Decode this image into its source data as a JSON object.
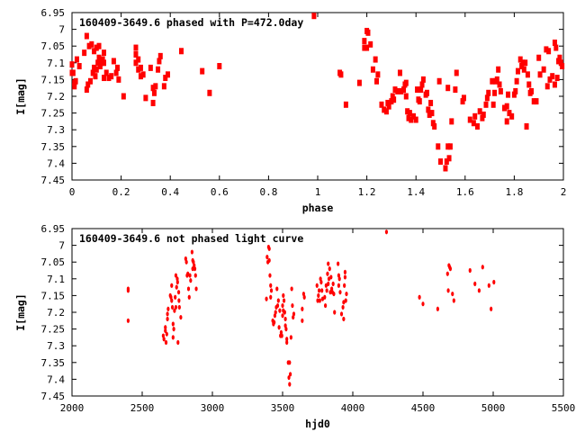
{
  "colors": {
    "points": "#ff0000",
    "axis": "#000000"
  },
  "chart_data": [
    {
      "type": "scatter",
      "title": "160409-3649.6 phased with P=472.0day",
      "xlabel": "phase",
      "ylabel": "I[mag]",
      "xlim": [
        0,
        2
      ],
      "ylim": [
        6.95,
        7.45
      ],
      "y_inverted": true,
      "grid": false,
      "xticks": [
        "0",
        "0.2",
        "0.4",
        "0.6",
        "0.8",
        "1",
        "1.2",
        "1.4",
        "1.6",
        "1.8",
        "2"
      ],
      "yticks": [
        "6.95",
        "7",
        "7.05",
        "7.1",
        "7.15",
        "7.2",
        "7.25",
        "7.3",
        "7.35",
        "7.4",
        "7.45"
      ],
      "points": [
        [
          0.0,
          7.105
        ],
        [
          0.0,
          7.13
        ],
        [
          0.005,
          7.13
        ],
        [
          0.01,
          7.16
        ],
        [
          0.01,
          7.17
        ],
        [
          0.015,
          7.155
        ],
        [
          0.02,
          7.09
        ],
        [
          0.03,
          7.11
        ],
        [
          0.05,
          7.07
        ],
        [
          0.06,
          7.02
        ],
        [
          0.06,
          7.18
        ],
        [
          0.065,
          7.165
        ],
        [
          0.07,
          7.05
        ],
        [
          0.075,
          7.155
        ],
        [
          0.08,
          7.045
        ],
        [
          0.085,
          7.13
        ],
        [
          0.09,
          7.115
        ],
        [
          0.09,
          7.065
        ],
        [
          0.095,
          7.14
        ],
        [
          0.1,
          7.055
        ],
        [
          0.1,
          7.12
        ],
        [
          0.105,
          7.1
        ],
        [
          0.11,
          7.05
        ],
        [
          0.11,
          7.085
        ],
        [
          0.115,
          7.11
        ],
        [
          0.12,
          7.1
        ],
        [
          0.125,
          7.09
        ],
        [
          0.13,
          7.1
        ],
        [
          0.13,
          7.07
        ],
        [
          0.13,
          7.145
        ],
        [
          0.14,
          7.13
        ],
        [
          0.15,
          7.145
        ],
        [
          0.16,
          7.14
        ],
        [
          0.17,
          7.095
        ],
        [
          0.18,
          7.13
        ],
        [
          0.185,
          7.115
        ],
        [
          0.19,
          7.15
        ],
        [
          0.21,
          7.2
        ],
        [
          0.26,
          7.055
        ],
        [
          0.26,
          7.075
        ],
        [
          0.26,
          7.1
        ],
        [
          0.27,
          7.12
        ],
        [
          0.27,
          7.09
        ],
        [
          0.28,
          7.14
        ],
        [
          0.28,
          7.115
        ],
        [
          0.29,
          7.135
        ],
        [
          0.3,
          7.205
        ],
        [
          0.32,
          7.115
        ],
        [
          0.33,
          7.22
        ],
        [
          0.33,
          7.175
        ],
        [
          0.335,
          7.19
        ],
        [
          0.34,
          7.17
        ],
        [
          0.35,
          7.12
        ],
        [
          0.355,
          7.095
        ],
        [
          0.36,
          7.08
        ],
        [
          0.375,
          7.17
        ],
        [
          0.38,
          7.145
        ],
        [
          0.39,
          7.135
        ],
        [
          0.445,
          7.065
        ],
        [
          0.53,
          7.125
        ],
        [
          0.56,
          7.19
        ],
        [
          0.6,
          7.11
        ],
        [
          0.985,
          6.96
        ],
        [
          1.09,
          7.13
        ],
        [
          1.095,
          7.135
        ],
        [
          1.115,
          7.225
        ],
        [
          1.17,
          7.16
        ],
        [
          1.19,
          7.055
        ],
        [
          1.19,
          7.035
        ],
        [
          1.2,
          7.055
        ],
        [
          1.2,
          7.005
        ],
        [
          1.205,
          7.01
        ],
        [
          1.215,
          7.045
        ],
        [
          1.225,
          7.12
        ],
        [
          1.235,
          7.09
        ],
        [
          1.24,
          7.155
        ],
        [
          1.245,
          7.135
        ],
        [
          1.26,
          7.225
        ],
        [
          1.27,
          7.24
        ],
        [
          1.28,
          7.245
        ],
        [
          1.285,
          7.22
        ],
        [
          1.29,
          7.23
        ],
        [
          1.3,
          7.215
        ],
        [
          1.305,
          7.2
        ],
        [
          1.31,
          7.21
        ],
        [
          1.315,
          7.18
        ],
        [
          1.325,
          7.185
        ],
        [
          1.335,
          7.13
        ],
        [
          1.34,
          7.185
        ],
        [
          1.35,
          7.18
        ],
        [
          1.355,
          7.165
        ],
        [
          1.36,
          7.16
        ],
        [
          1.36,
          7.2
        ],
        [
          1.365,
          7.245
        ],
        [
          1.37,
          7.265
        ],
        [
          1.375,
          7.25
        ],
        [
          1.38,
          7.27
        ],
        [
          1.39,
          7.26
        ],
        [
          1.4,
          7.27
        ],
        [
          1.405,
          7.18
        ],
        [
          1.41,
          7.21
        ],
        [
          1.415,
          7.215
        ],
        [
          1.42,
          7.18
        ],
        [
          1.425,
          7.165
        ],
        [
          1.43,
          7.15
        ],
        [
          1.44,
          7.195
        ],
        [
          1.445,
          7.19
        ],
        [
          1.45,
          7.24
        ],
        [
          1.455,
          7.255
        ],
        [
          1.46,
          7.22
        ],
        [
          1.465,
          7.25
        ],
        [
          1.47,
          7.28
        ],
        [
          1.475,
          7.29
        ],
        [
          1.49,
          7.35
        ],
        [
          1.495,
          7.155
        ],
        [
          1.5,
          7.395
        ],
        [
          1.52,
          7.415
        ],
        [
          1.525,
          7.395
        ],
        [
          1.53,
          7.35
        ],
        [
          1.53,
          7.175
        ],
        [
          1.535,
          7.385
        ],
        [
          1.54,
          7.35
        ],
        [
          1.545,
          7.275
        ],
        [
          1.56,
          7.18
        ],
        [
          1.565,
          7.13
        ],
        [
          1.59,
          7.215
        ],
        [
          1.595,
          7.205
        ],
        [
          1.62,
          7.27
        ],
        [
          1.635,
          7.28
        ],
        [
          1.64,
          7.26
        ],
        [
          1.65,
          7.29
        ],
        [
          1.66,
          7.245
        ],
        [
          1.67,
          7.265
        ],
        [
          1.675,
          7.255
        ],
        [
          1.685,
          7.225
        ],
        [
          1.69,
          7.205
        ],
        [
          1.695,
          7.19
        ],
        [
          1.71,
          7.155
        ],
        [
          1.715,
          7.225
        ],
        [
          1.72,
          7.19
        ],
        [
          1.725,
          7.155
        ],
        [
          1.73,
          7.15
        ],
        [
          1.735,
          7.12
        ],
        [
          1.74,
          7.165
        ],
        [
          1.745,
          7.185
        ],
        [
          1.76,
          7.235
        ],
        [
          1.77,
          7.23
        ],
        [
          1.77,
          7.275
        ],
        [
          1.775,
          7.195
        ],
        [
          1.78,
          7.25
        ],
        [
          1.79,
          7.26
        ],
        [
          1.8,
          7.195
        ],
        [
          1.805,
          7.185
        ],
        [
          1.81,
          7.155
        ],
        [
          1.815,
          7.125
        ],
        [
          1.825,
          7.09
        ],
        [
          1.83,
          7.11
        ],
        [
          1.835,
          7.1
        ],
        [
          1.84,
          7.12
        ],
        [
          1.845,
          7.1
        ],
        [
          1.85,
          7.29
        ],
        [
          1.855,
          7.135
        ],
        [
          1.86,
          7.165
        ],
        [
          1.865,
          7.19
        ],
        [
          1.87,
          7.185
        ],
        [
          1.88,
          7.215
        ],
        [
          1.89,
          7.215
        ],
        [
          1.9,
          7.085
        ],
        [
          1.905,
          7.135
        ],
        [
          1.92,
          7.12
        ],
        [
          1.93,
          7.06
        ],
        [
          1.935,
          7.17
        ],
        [
          1.94,
          7.065
        ],
        [
          1.945,
          7.15
        ],
        [
          1.955,
          7.14
        ],
        [
          1.965,
          7.04
        ],
        [
          1.965,
          7.165
        ],
        [
          1.97,
          7.055
        ],
        [
          1.975,
          7.145
        ],
        [
          1.98,
          7.095
        ],
        [
          1.985,
          7.085
        ],
        [
          1.99,
          7.1
        ],
        [
          1.995,
          7.11
        ]
      ]
    },
    {
      "type": "scatter",
      "title": "160409-3649.6 not phased light curve",
      "xlabel": "hjd0",
      "ylabel": "I[mag]",
      "xlim": [
        2000,
        5500
      ],
      "ylim": [
        6.95,
        7.45
      ],
      "y_inverted": true,
      "grid": false,
      "xticks": [
        "2000",
        "2500",
        "3000",
        "3500",
        "4000",
        "4500",
        "5000",
        "5500"
      ],
      "yticks": [
        "6.95",
        "7",
        "7.05",
        "7.1",
        "7.15",
        "7.2",
        "7.25",
        "7.3",
        "7.35",
        "7.4",
        "7.45"
      ],
      "points": [
        [
          2400,
          7.13
        ],
        [
          2400,
          7.135
        ],
        [
          2400,
          7.225
        ],
        [
          2650,
          7.27
        ],
        [
          2655,
          7.28
        ],
        [
          2665,
          7.245
        ],
        [
          2665,
          7.255
        ],
        [
          2670,
          7.29
        ],
        [
          2675,
          7.265
        ],
        [
          2680,
          7.22
        ],
        [
          2680,
          7.205
        ],
        [
          2685,
          7.19
        ],
        [
          2700,
          7.15
        ],
        [
          2705,
          7.155
        ],
        [
          2710,
          7.165
        ],
        [
          2710,
          7.12
        ],
        [
          2715,
          7.185
        ],
        [
          2720,
          7.235
        ],
        [
          2720,
          7.275
        ],
        [
          2725,
          7.25
        ],
        [
          2730,
          7.195
        ],
        [
          2735,
          7.155
        ],
        [
          2740,
          7.185
        ],
        [
          2740,
          7.09
        ],
        [
          2745,
          7.125
        ],
        [
          2750,
          7.1
        ],
        [
          2752,
          7.11
        ],
        [
          2755,
          7.29
        ],
        [
          2760,
          7.14
        ],
        [
          2762,
          7.165
        ],
        [
          2765,
          7.185
        ],
        [
          2775,
          7.215
        ],
        [
          2810,
          7.04
        ],
        [
          2815,
          7.05
        ],
        [
          2820,
          7.09
        ],
        [
          2825,
          7.085
        ],
        [
          2830,
          7.13
        ],
        [
          2835,
          7.155
        ],
        [
          2840,
          7.09
        ],
        [
          2845,
          7.105
        ],
        [
          2855,
          7.02
        ],
        [
          2860,
          7.045
        ],
        [
          2860,
          7.07
        ],
        [
          2865,
          7.05
        ],
        [
          2870,
          7.06
        ],
        [
          2875,
          7.07
        ],
        [
          2880,
          7.09
        ],
        [
          2885,
          7.13
        ],
        [
          3385,
          7.16
        ],
        [
          3390,
          7.035
        ],
        [
          3395,
          7.05
        ],
        [
          3400,
          7.005
        ],
        [
          3405,
          7.01
        ],
        [
          3405,
          7.045
        ],
        [
          3410,
          7.09
        ],
        [
          3415,
          7.12
        ],
        [
          3415,
          7.155
        ],
        [
          3420,
          7.135
        ],
        [
          3430,
          7.225
        ],
        [
          3435,
          7.235
        ],
        [
          3440,
          7.23
        ],
        [
          3445,
          7.21
        ],
        [
          3450,
          7.2
        ],
        [
          3455,
          7.185
        ],
        [
          3460,
          7.13
        ],
        [
          3465,
          7.18
        ],
        [
          3470,
          7.165
        ],
        [
          3475,
          7.245
        ],
        [
          3480,
          7.195
        ],
        [
          3485,
          7.27
        ],
        [
          3490,
          7.26
        ],
        [
          3495,
          7.27
        ],
        [
          3500,
          7.18
        ],
        [
          3500,
          7.21
        ],
        [
          3505,
          7.15
        ],
        [
          3505,
          7.195
        ],
        [
          3510,
          7.165
        ],
        [
          3515,
          7.2
        ],
        [
          3520,
          7.24
        ],
        [
          3520,
          7.22
        ],
        [
          3525,
          7.25
        ],
        [
          3530,
          7.28
        ],
        [
          3530,
          7.29
        ],
        [
          3540,
          7.35
        ],
        [
          3545,
          7.395
        ],
        [
          3550,
          7.35
        ],
        [
          3550,
          7.415
        ],
        [
          3555,
          7.385
        ],
        [
          3560,
          7.275
        ],
        [
          3565,
          7.13
        ],
        [
          3570,
          7.18
        ],
        [
          3575,
          7.215
        ],
        [
          3580,
          7.205
        ],
        [
          3640,
          7.19
        ],
        [
          3640,
          7.225
        ],
        [
          3650,
          7.145
        ],
        [
          3655,
          7.155
        ],
        [
          3745,
          7.12
        ],
        [
          3750,
          7.165
        ],
        [
          3755,
          7.15
        ],
        [
          3760,
          7.135
        ],
        [
          3765,
          7.165
        ],
        [
          3770,
          7.1
        ],
        [
          3775,
          7.11
        ],
        [
          3780,
          7.135
        ],
        [
          3785,
          7.16
        ],
        [
          3800,
          7.155
        ],
        [
          3805,
          7.18
        ],
        [
          3810,
          7.12
        ],
        [
          3815,
          7.135
        ],
        [
          3820,
          7.085
        ],
        [
          3825,
          7.055
        ],
        [
          3825,
          7.115
        ],
        [
          3830,
          7.1
        ],
        [
          3835,
          7.07
        ],
        [
          3840,
          7.14
        ],
        [
          3845,
          7.095
        ],
        [
          3850,
          7.13
        ],
        [
          3855,
          7.14
        ],
        [
          3860,
          7.115
        ],
        [
          3865,
          7.145
        ],
        [
          3870,
          7.2
        ],
        [
          3895,
          7.055
        ],
        [
          3900,
          7.09
        ],
        [
          3900,
          7.12
        ],
        [
          3905,
          7.1
        ],
        [
          3910,
          7.14
        ],
        [
          3920,
          7.205
        ],
        [
          3930,
          7.185
        ],
        [
          3935,
          7.22
        ],
        [
          3935,
          7.17
        ],
        [
          3940,
          7.12
        ],
        [
          3945,
          7.08
        ],
        [
          3945,
          7.095
        ],
        [
          3950,
          7.165
        ],
        [
          3955,
          7.145
        ],
        [
          4240,
          6.96
        ],
        [
          4475,
          7.155
        ],
        [
          4500,
          7.175
        ],
        [
          4605,
          7.19
        ],
        [
          4675,
          7.085
        ],
        [
          4680,
          7.135
        ],
        [
          4685,
          7.06
        ],
        [
          4690,
          7.065
        ],
        [
          4695,
          7.07
        ],
        [
          4710,
          7.145
        ],
        [
          4720,
          7.165
        ],
        [
          4835,
          7.075
        ],
        [
          4870,
          7.115
        ],
        [
          4900,
          7.135
        ],
        [
          4925,
          7.065
        ],
        [
          4970,
          7.12
        ],
        [
          4985,
          7.19
        ],
        [
          5005,
          7.11
        ]
      ]
    }
  ]
}
